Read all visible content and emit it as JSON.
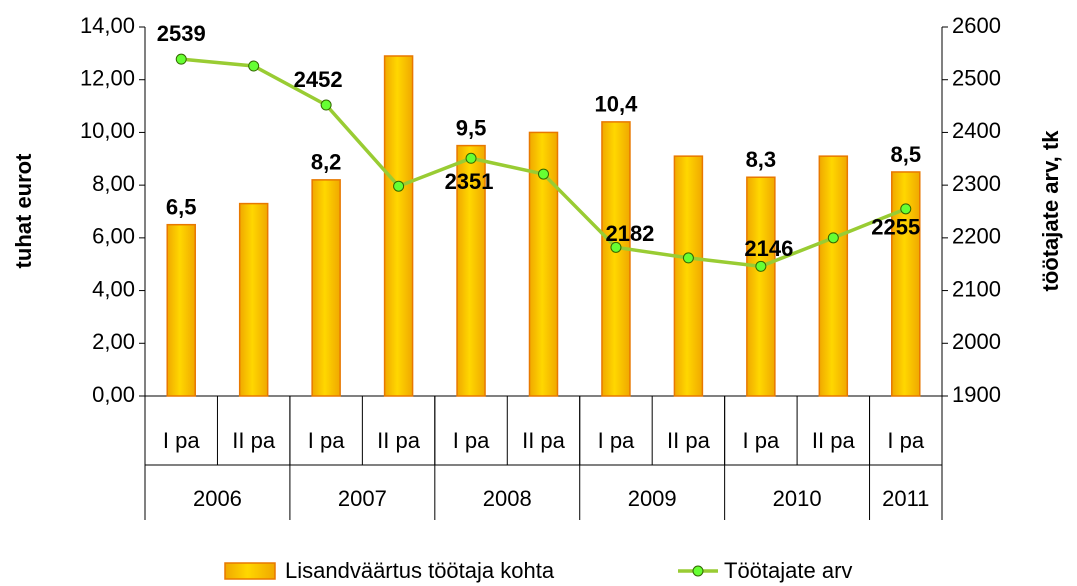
{
  "chart_data": {
    "type": "bar-line",
    "categories": [
      "I pa",
      "II pa",
      "I pa",
      "II pa",
      "I pa",
      "II pa",
      "I pa",
      "II pa",
      "I pa",
      "II pa",
      "I pa"
    ],
    "groups": [
      {
        "label": "2006",
        "count": 2
      },
      {
        "label": "2007",
        "count": 2
      },
      {
        "label": "2008",
        "count": 2
      },
      {
        "label": "2009",
        "count": 2
      },
      {
        "label": "2010",
        "count": 2
      },
      {
        "label": "2011",
        "count": 1
      }
    ],
    "ylabel": "tuhat eurot",
    "y2label": "töötajate arv, tk",
    "ylim": [
      0,
      14
    ],
    "yticks": [
      {
        "value": 0,
        "label": "0,00"
      },
      {
        "value": 2,
        "label": "2,00"
      },
      {
        "value": 4,
        "label": "4,00"
      },
      {
        "value": 6,
        "label": "6,00"
      },
      {
        "value": 8,
        "label": "8,00"
      },
      {
        "value": 10,
        "label": "10,00"
      },
      {
        "value": 12,
        "label": "12,00"
      },
      {
        "value": 14,
        "label": "14,00"
      }
    ],
    "y2lim": [
      1900,
      2600
    ],
    "y2ticks": [
      1900,
      2000,
      2100,
      2200,
      2300,
      2400,
      2500,
      2600
    ],
    "series": [
      {
        "name": "Lisandväärtus töötaja kohta",
        "type": "bar",
        "color": "#FFCC00",
        "values": [
          6.5,
          7.3,
          8.2,
          12.9,
          9.5,
          10.0,
          10.4,
          9.1,
          8.3,
          9.1,
          8.5
        ],
        "value_labels": [
          "6,5",
          null,
          "8,2",
          null,
          "9,5",
          null,
          "10,4",
          null,
          "8,3",
          null,
          "8,5"
        ]
      },
      {
        "name": "Töötajate arv",
        "type": "line",
        "axis": "y2",
        "color": "#99CC33",
        "values": [
          2539,
          2526,
          2452,
          2298,
          2351,
          2321,
          2182,
          2162,
          2146,
          2200,
          2255
        ],
        "value_labels": [
          "2539",
          null,
          "2452",
          null,
          "2351",
          null,
          "2182",
          null,
          "2146",
          null,
          "2255"
        ]
      }
    ]
  }
}
